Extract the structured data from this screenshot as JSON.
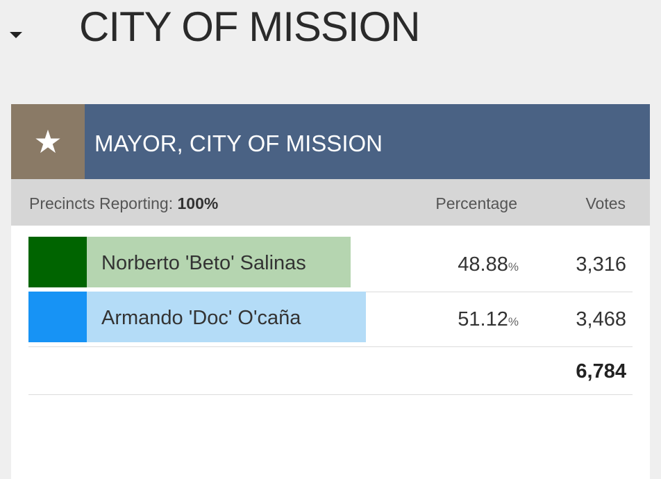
{
  "page": {
    "title": "CITY OF MISSION"
  },
  "race": {
    "title": "MAYOR, CITY OF MISSION",
    "icon": "star-icon",
    "header_color": "#4a6284",
    "icon_bg_color": "#8a7a66",
    "precincts_label": "Precincts Reporting:",
    "precincts_value": "100%",
    "percentage_header": "Percentage",
    "votes_header": "Votes",
    "candidates": [
      {
        "name": "Norberto 'Beto' Salinas",
        "percentage": "48.88",
        "percent_sign": "%",
        "votes": "3,316",
        "color": "#006400",
        "bar_color": "#b5d5b0",
        "share": 48.88
      },
      {
        "name": "Armando 'Doc' O'caña",
        "percentage": "51.12",
        "percent_sign": "%",
        "votes": "3,468",
        "color": "#1793f5",
        "bar_color": "#b4dcf7",
        "share": 51.12
      }
    ],
    "total_votes": "6,784"
  }
}
